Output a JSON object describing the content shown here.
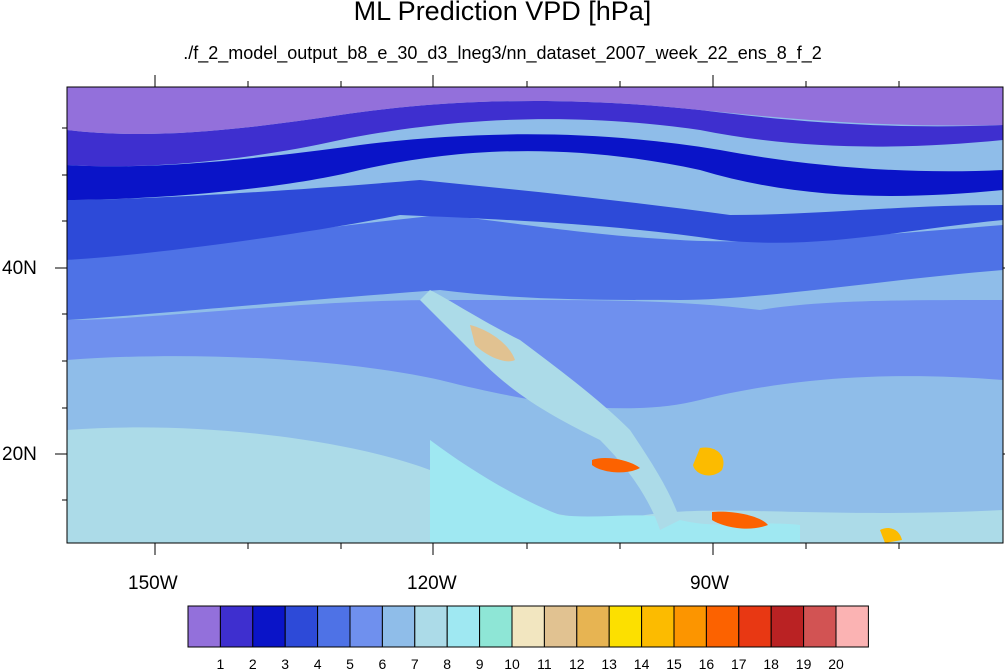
{
  "title": "ML Prediction VPD [hPa]",
  "subtitle": "./f_2_model_output_b8_e_30_d3_lneg3/nn_dataset_2007_week_22_ens_8_f_2",
  "map": {
    "variable": "VPD",
    "units": "hPa",
    "lat_labels": [
      "40N",
      "20N"
    ],
    "lon_labels": [
      "150W",
      "120W",
      "90W"
    ]
  },
  "colorbar": {
    "labels": [
      "1",
      "2",
      "3",
      "4",
      "5",
      "6",
      "7",
      "8",
      "9",
      "10",
      "11",
      "12",
      "13",
      "14",
      "15",
      "16",
      "17",
      "18",
      "19",
      "20"
    ],
    "colors": [
      "#9370db",
      "#3e2fcf",
      "#0a14c8",
      "#2d4ad8",
      "#4e72e6",
      "#6f90ee",
      "#8fbde9",
      "#acdbe8",
      "#9fe8f2",
      "#8ee6d6",
      "#f2e6c0",
      "#e1c291",
      "#e7b452",
      "#fce000",
      "#fcbb00",
      "#fc9500",
      "#fc6200",
      "#e83813",
      "#ba2223",
      "#d25353",
      "#fbb3b3"
    ]
  }
}
